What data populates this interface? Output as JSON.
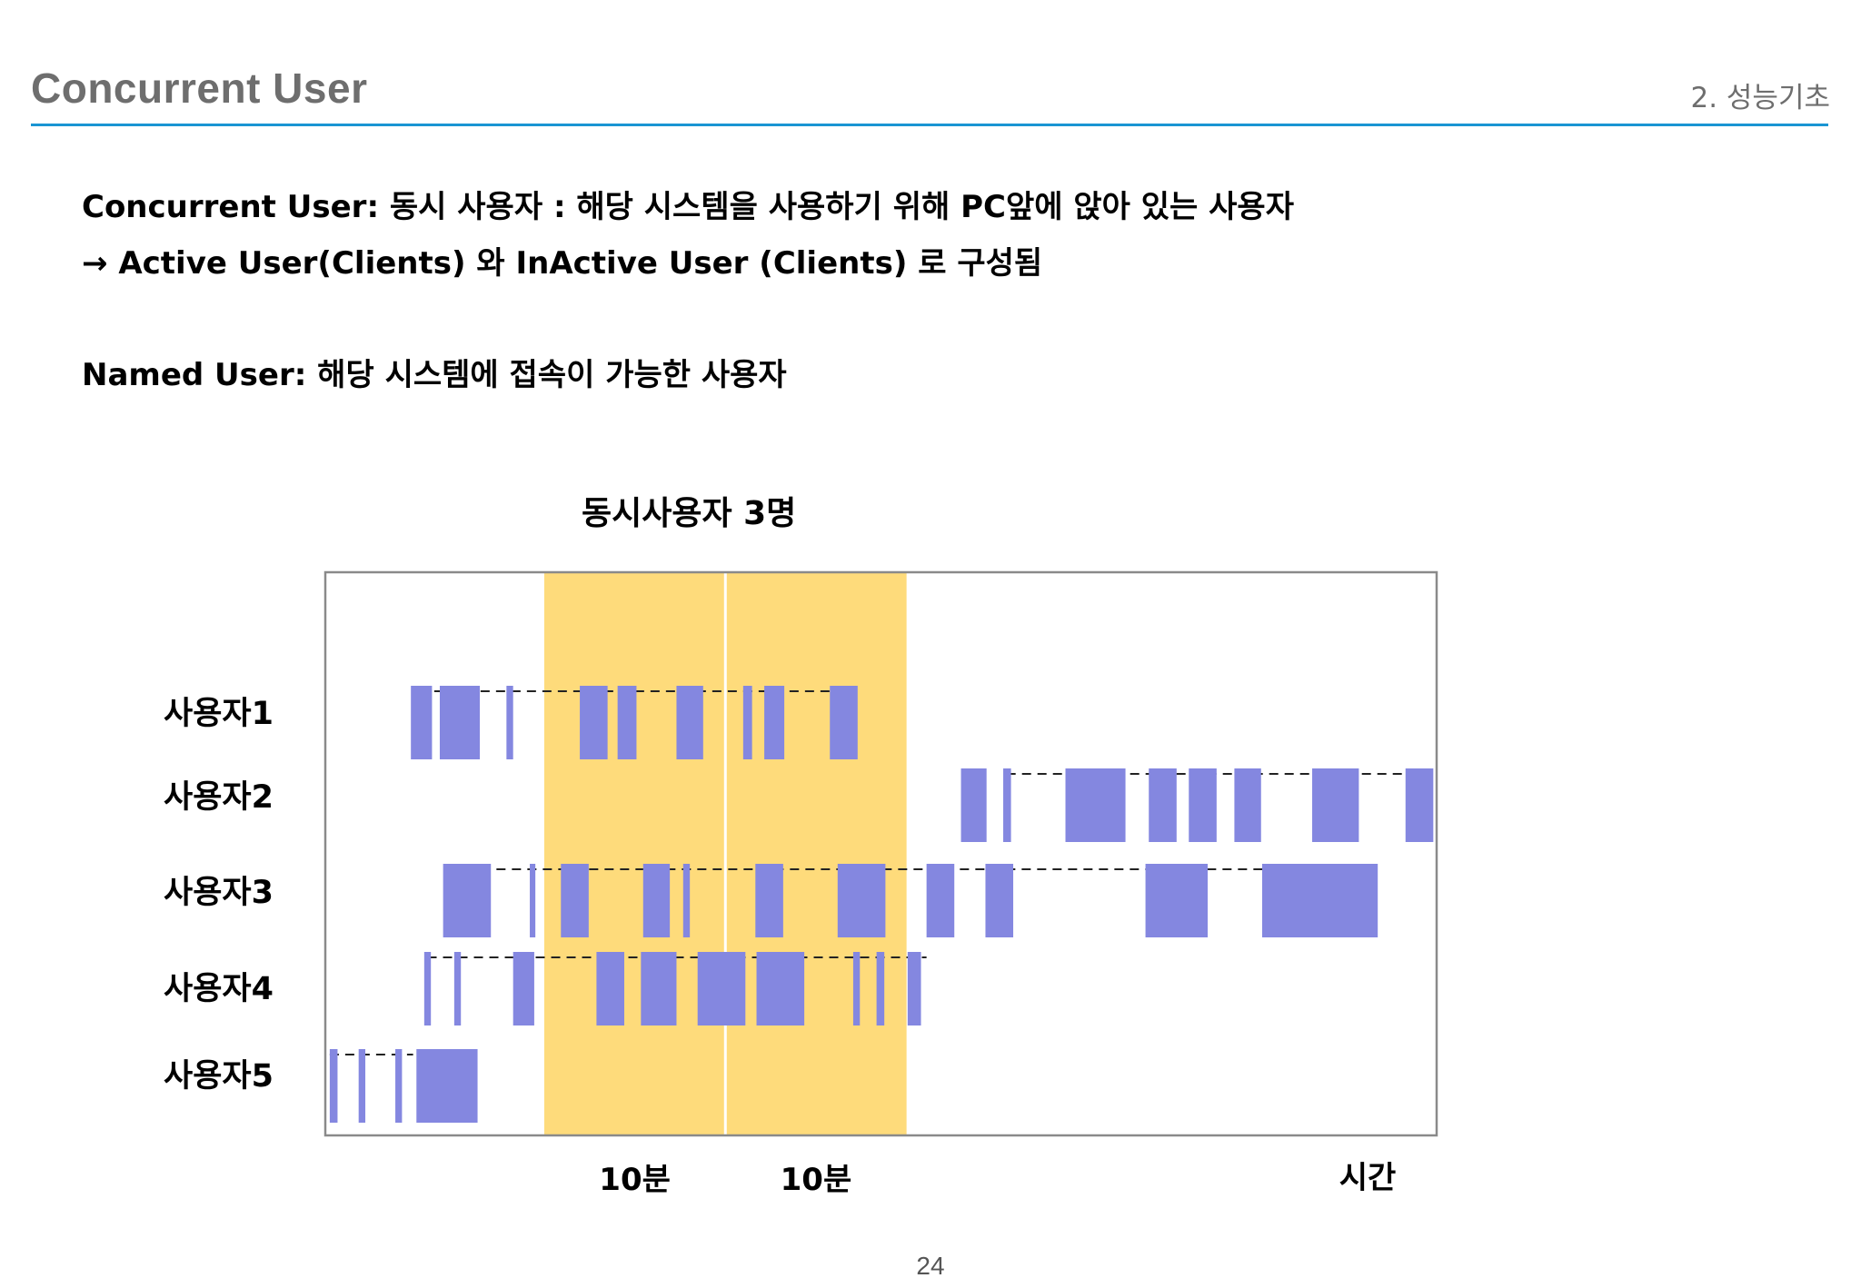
{
  "header": {
    "title": "Concurrent User",
    "section": "2. 성능기초"
  },
  "body": {
    "line1": "Concurrent User: 동시 사용자 : 해당 시스템을 사용하기 위해 PC앞에 앉아 있는 사용자",
    "line2": "→ Active User(Clients) 와 InActive User (Clients) 로 구성됨",
    "line3": "Named User: 해당 시스템에 접속이 가능한 사용자"
  },
  "page_number": "24",
  "colors": {
    "title_text": "#6e6e6e",
    "rule": "#1a95d3",
    "highlight": "#fedb7b",
    "activity_bar": "#8487e0",
    "frame": "#8a8a8a"
  },
  "chart_data": {
    "type": "timeline",
    "title": "동시사용자 3명",
    "x_domain": [
      0,
      100
    ],
    "xlabel": "시간",
    "windows": [
      {
        "label": "10분",
        "start": 19.7,
        "end": 36.0
      },
      {
        "label": "10분",
        "start": 36.0,
        "end": 52.3
      }
    ],
    "users": [
      {
        "name": "사용자1",
        "session": [
          9.8,
          45.5
        ],
        "activity": [
          [
            7.7,
            9.6
          ],
          [
            10.3,
            13.9
          ],
          [
            16.3,
            16.9
          ],
          [
            22.9,
            25.4
          ],
          [
            26.3,
            28.0
          ],
          [
            31.6,
            34.0
          ],
          [
            37.6,
            38.4
          ],
          [
            39.5,
            41.3
          ],
          [
            45.4,
            47.9
          ]
        ]
      },
      {
        "name": "사용자2",
        "session": [
          61.3,
          97.6
        ],
        "activity": [
          [
            57.2,
            59.5
          ],
          [
            61.0,
            61.7
          ],
          [
            66.6,
            72.0
          ],
          [
            74.1,
            76.6
          ],
          [
            77.7,
            80.2
          ],
          [
            81.8,
            84.2
          ],
          [
            88.8,
            93.0
          ],
          [
            97.2,
            99.7
          ]
        ]
      },
      {
        "name": "사용자3",
        "session": [
          15.4,
          84.4
        ],
        "activity": [
          [
            10.6,
            14.9
          ],
          [
            18.4,
            18.9
          ],
          [
            21.2,
            23.7
          ],
          [
            28.6,
            31.0
          ],
          [
            32.2,
            32.8
          ],
          [
            38.7,
            41.2
          ],
          [
            46.1,
            50.4
          ],
          [
            54.1,
            56.6
          ],
          [
            59.4,
            61.9
          ],
          [
            73.8,
            79.4
          ],
          [
            84.3,
            94.7
          ]
        ]
      },
      {
        "name": "사용자4",
        "session": [
          9.2,
          54.1
        ],
        "activity": [
          [
            8.9,
            9.5
          ],
          [
            11.6,
            12.2
          ],
          [
            16.9,
            18.8
          ],
          [
            24.4,
            26.9
          ],
          [
            28.4,
            31.6
          ],
          [
            33.5,
            37.8
          ],
          [
            38.8,
            43.1
          ],
          [
            47.5,
            48.1
          ],
          [
            49.6,
            50.3
          ],
          [
            52.4,
            53.6
          ]
        ]
      },
      {
        "name": "사용자5",
        "session": [
          0.4,
          7.9
        ],
        "activity": [
          [
            0.4,
            1.1
          ],
          [
            3.0,
            3.6
          ],
          [
            6.3,
            6.9
          ],
          [
            8.2,
            13.7
          ]
        ]
      }
    ]
  }
}
